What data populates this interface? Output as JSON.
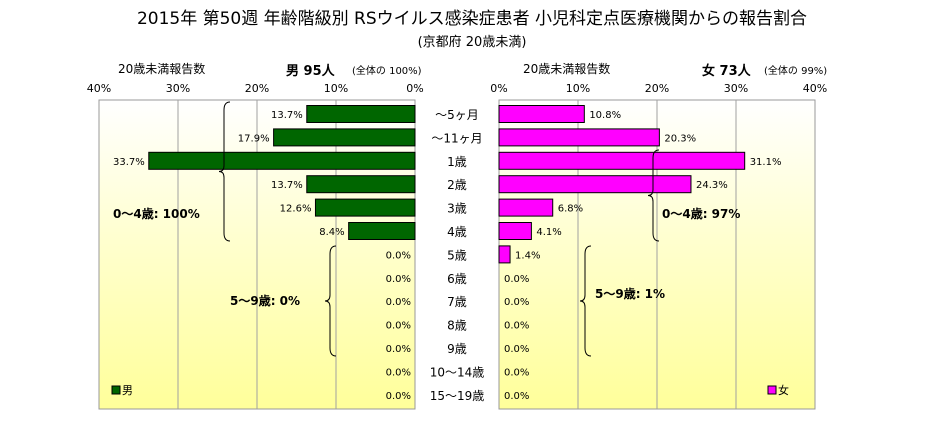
{
  "title": "2015年 第50週 年齢階級別 RSウイルス感染症患者 小児科定点医療機関からの報告割合",
  "subtitle": "(京都府 20歳未満)",
  "chart_data": [
    {
      "type": "bar",
      "orientation": "horizontal",
      "direction": "leftward",
      "panel": "male",
      "header_left": "20歳未満報告数",
      "header_right": "男  95人",
      "header_note": "(全体の  100%)",
      "xlim": [
        0,
        40
      ],
      "xticks": [
        "40%",
        "30%",
        "20%",
        "10%",
        "0%"
      ],
      "grid": true,
      "categories": [
        "～5ヶ月",
        "～11ヶ月",
        "1歳",
        "2歳",
        "3歳",
        "4歳",
        "5歳",
        "6歳",
        "7歳",
        "8歳",
        "9歳",
        "10～14歳",
        "15～19歳"
      ],
      "values": [
        13.7,
        17.9,
        33.7,
        13.7,
        12.6,
        8.4,
        0.0,
        0.0,
        0.0,
        0.0,
        0.0,
        0.0,
        0.0
      ],
      "data_labels": [
        "13.7%",
        "17.9%",
        "33.7%",
        "13.7%",
        "12.6%",
        "8.4%",
        "0.0%",
        "0.0%",
        "0.0%",
        "0.0%",
        "0.0%",
        "0.0%",
        "0.0%"
      ],
      "annotations": [
        "0～4歳: 100%",
        "5～9歳: 0%"
      ],
      "legend": "男",
      "legend_position": "bottom-left",
      "color": "#006600"
    },
    {
      "type": "bar",
      "orientation": "horizontal",
      "direction": "rightward",
      "panel": "female",
      "header_left": "20歳未満報告数",
      "header_right": "女  73人",
      "header_note": "(全体の  99%)",
      "xlim": [
        0,
        40
      ],
      "xticks": [
        "0%",
        "10%",
        "20%",
        "30%",
        "40%"
      ],
      "grid": true,
      "categories": [
        "～5ヶ月",
        "～11ヶ月",
        "1歳",
        "2歳",
        "3歳",
        "4歳",
        "5歳",
        "6歳",
        "7歳",
        "8歳",
        "9歳",
        "10～14歳",
        "15～19歳"
      ],
      "values": [
        10.8,
        20.3,
        31.1,
        24.3,
        6.8,
        4.1,
        1.4,
        0.0,
        0.0,
        0.0,
        0.0,
        0.0,
        0.0
      ],
      "data_labels": [
        "10.8%",
        "20.3%",
        "31.1%",
        "24.3%",
        "6.8%",
        "4.1%",
        "1.4%",
        "0.0%",
        "0.0%",
        "0.0%",
        "0.0%",
        "0.0%",
        "0.0%"
      ],
      "annotations": [
        "0～4歳: 97%",
        "5～9歳: 1%"
      ],
      "legend": "女",
      "legend_position": "bottom-right",
      "color": "#ff00ff"
    }
  ]
}
